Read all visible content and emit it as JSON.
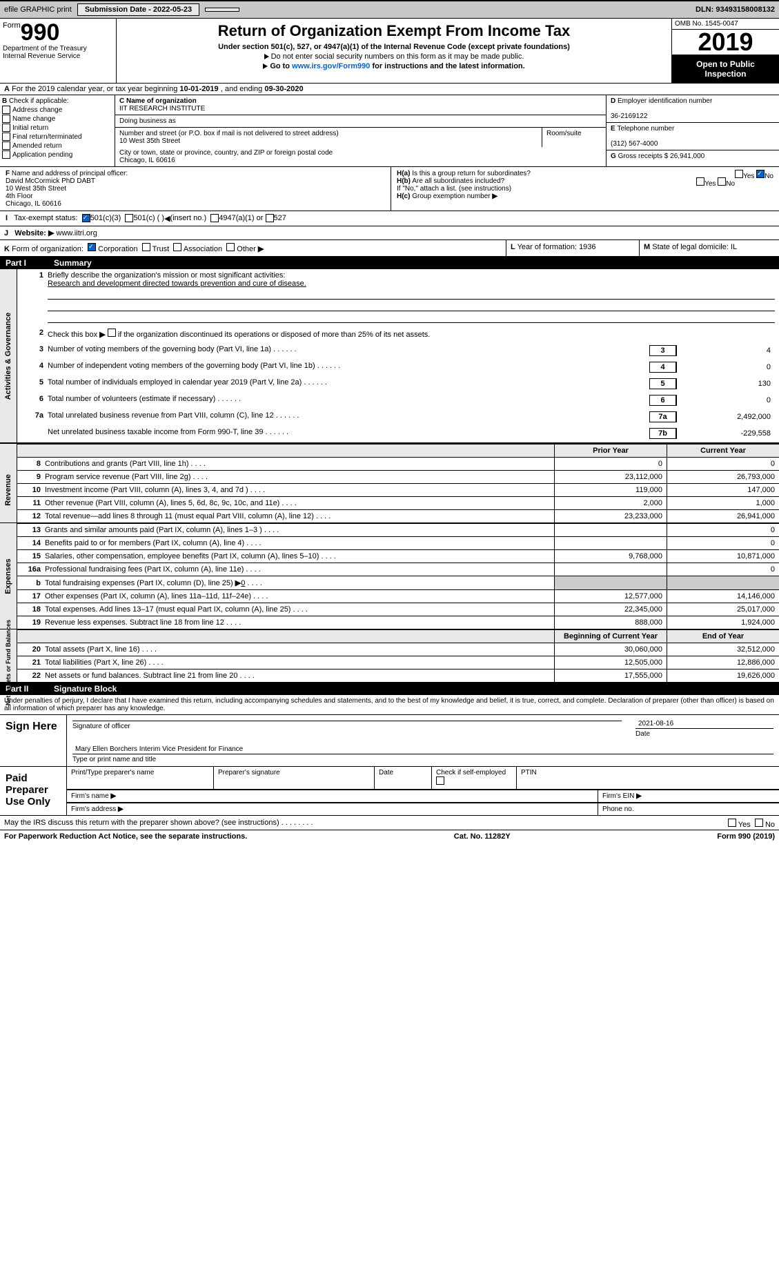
{
  "top": {
    "efile": "efile GRAPHIC print",
    "subm_lbl": "Submission Date - ",
    "subm_date": "2022-05-23",
    "dln": "DLN: 93493158008132"
  },
  "hdr": {
    "form": "Form",
    "num": "990",
    "dept": "Department of the Treasury\nInternal Revenue Service",
    "title": "Return of Organization Exempt From Income Tax",
    "sec": "Under section 501(c), 527, or 4947(a)(1) of the Internal Revenue Code (except private foundations)",
    "ssn": "Do not enter social security numbers on this form as it may be made public.",
    "goto": "Go to ",
    "url": "www.irs.gov/Form990",
    "instr": " for instructions and the latest information.",
    "omb": "OMB No. 1545-0047",
    "year": "2019",
    "otp": "Open to Public Inspection"
  },
  "period": {
    "a": "A",
    "txt": "For the 2019 calendar year, or tax year beginning ",
    "beg": "10-01-2019",
    "mid": " , and ending ",
    "end": "09-30-2020"
  },
  "b": {
    "lbl": "Check if applicable:",
    "items": [
      "Address change",
      "Name change",
      "Initial return",
      "Final return/terminated",
      "Amended return",
      "Application pending"
    ]
  },
  "c": {
    "name_lbl": "Name of organization",
    "name": "IIT RESEARCH INSTITUTE",
    "dba_lbl": "Doing business as",
    "addr_lbl": "Number and street (or P.O. box if mail is not delivered to street address)",
    "room_lbl": "Room/suite",
    "addr": "10 West 35th Street",
    "city_lbl": "City or town, state or province, country, and ZIP or foreign postal code",
    "city": "Chicago, IL  60616"
  },
  "d": {
    "ein_lbl": "Employer identification number",
    "ein": "36-2169122",
    "tel_lbl": "Telephone number",
    "tel": "(312) 567-4000",
    "gross_lbl": "Gross receipts $ ",
    "gross": "26,941,000"
  },
  "f": {
    "lbl": "Name and address of principal officer:",
    "lines": [
      "David McCormick PhD DABT",
      "10 West 35th Street",
      "4th Floor",
      "Chicago, IL  60616"
    ]
  },
  "h": {
    "a": "Is this a group return for subordinates?",
    "b": "Are all subordinates included?",
    "note": "If \"No,\" attach a list. (see instructions)",
    "c": "Group exemption number",
    "yes": "Yes",
    "no": "No"
  },
  "i": {
    "lbl": "Tax-exempt status:",
    "o1": "501(c)(3)",
    "o2": "501(c) (  )",
    "ins": "(insert no.)",
    "o3": "4947(a)(1) or",
    "o4": "527"
  },
  "j": {
    "lbl": "Website:",
    "url": "www.iitri.org"
  },
  "k": {
    "lbl": "Form of organization:",
    "opts": [
      "Corporation",
      "Trust",
      "Association",
      "Other"
    ]
  },
  "l": {
    "lbl": "Year of formation: ",
    "val": "1936"
  },
  "m": {
    "lbl": "State of legal domicile: ",
    "val": "IL"
  },
  "p1": {
    "title": "Summary",
    "q1": "Briefly describe the organization's mission or most significant activities:",
    "mission": "Research and development directed towards prevention and cure of disease.",
    "q2": "Check this box",
    "q2b": "if the organization discontinued its operations or disposed of more than 25% of its net assets.",
    "lines": [
      {
        "n": "3",
        "t": "Number of voting members of the governing body (Part VI, line 1a)",
        "b": "3",
        "v": "4"
      },
      {
        "n": "4",
        "t": "Number of independent voting members of the governing body (Part VI, line 1b)",
        "b": "4",
        "v": "0"
      },
      {
        "n": "5",
        "t": "Total number of individuals employed in calendar year 2019 (Part V, line 2a)",
        "b": "5",
        "v": "130"
      },
      {
        "n": "6",
        "t": "Total number of volunteers (estimate if necessary)",
        "b": "6",
        "v": "0"
      },
      {
        "n": "7a",
        "t": "Total unrelated business revenue from Part VIII, column (C), line 12",
        "b": "7a",
        "v": "2,492,000"
      },
      {
        "n": "",
        "t": "Net unrelated business taxable income from Form 990-T, line 39",
        "b": "7b",
        "v": "-229,558"
      }
    ],
    "hdr": {
      "prior": "Prior Year",
      "curr": "Current Year"
    },
    "rev": {
      "tab": "Revenue",
      "rows": [
        {
          "n": "8",
          "t": "Contributions and grants (Part VIII, line 1h)",
          "p": "0",
          "c": "0"
        },
        {
          "n": "9",
          "t": "Program service revenue (Part VIII, line 2g)",
          "p": "23,112,000",
          "c": "26,793,000"
        },
        {
          "n": "10",
          "t": "Investment income (Part VIII, column (A), lines 3, 4, and 7d )",
          "p": "119,000",
          "c": "147,000"
        },
        {
          "n": "11",
          "t": "Other revenue (Part VIII, column (A), lines 5, 6d, 8c, 9c, 10c, and 11e)",
          "p": "2,000",
          "c": "1,000"
        },
        {
          "n": "12",
          "t": "Total revenue—add lines 8 through 11 (must equal Part VIII, column (A), line 12)",
          "p": "23,233,000",
          "c": "26,941,000"
        }
      ]
    },
    "exp": {
      "tab": "Expenses",
      "rows": [
        {
          "n": "13",
          "t": "Grants and similar amounts paid (Part IX, column (A), lines 1–3 )",
          "p": "",
          "c": "0"
        },
        {
          "n": "14",
          "t": "Benefits paid to or for members (Part IX, column (A), line 4)",
          "p": "",
          "c": "0"
        },
        {
          "n": "15",
          "t": "Salaries, other compensation, employee benefits (Part IX, column (A), lines 5–10)",
          "p": "9,768,000",
          "c": "10,871,000"
        },
        {
          "n": "16a",
          "t": "Professional fundraising fees (Part IX, column (A), line 11e)",
          "p": "",
          "c": "0"
        },
        {
          "n": "b",
          "t": "Total fundraising expenses (Part IX, column (D), line 25)",
          "p": "GRAY",
          "c": "GRAY",
          "extra": "0"
        },
        {
          "n": "17",
          "t": "Other expenses (Part IX, column (A), lines 11a–11d, 11f–24e)",
          "p": "12,577,000",
          "c": "14,146,000"
        },
        {
          "n": "18",
          "t": "Total expenses. Add lines 13–17 (must equal Part IX, column (A), line 25)",
          "p": "22,345,000",
          "c": "25,017,000"
        },
        {
          "n": "19",
          "t": "Revenue less expenses. Subtract line 18 from line 12",
          "p": "888,000",
          "c": "1,924,000"
        }
      ]
    },
    "net": {
      "tab": "Net Assets or Fund Balances",
      "hdr": {
        "b": "Beginning of Current Year",
        "e": "End of Year"
      },
      "rows": [
        {
          "n": "20",
          "t": "Total assets (Part X, line 16)",
          "p": "30,060,000",
          "c": "32,512,000"
        },
        {
          "n": "21",
          "t": "Total liabilities (Part X, line 26)",
          "p": "12,505,000",
          "c": "12,886,000"
        },
        {
          "n": "22",
          "t": "Net assets or fund balances. Subtract line 21 from line 20",
          "p": "17,555,000",
          "c": "19,626,000"
        }
      ]
    }
  },
  "p2": {
    "title": "Signature Block",
    "decl": "Under penalties of perjury, I declare that I have examined this return, including accompanying schedules and statements, and to the best of my knowledge and belief, it is true, correct, and complete. Declaration of preparer (other than officer) is based on all information of which preparer has any knowledge."
  },
  "sign": {
    "lbl": "Sign Here",
    "sig": "Signature of officer",
    "date_lbl": "Date",
    "date": "2021-08-16",
    "name": "Mary Ellen Borchers  Interim Vice President for Finance",
    "type": "Type or print name and title"
  },
  "prep": {
    "lbl": "Paid Preparer Use Only",
    "h": [
      "Print/Type preparer's name",
      "Preparer's signature",
      "Date",
      "Check        if self-employed",
      "PTIN"
    ],
    "firm": "Firm's name",
    "ein": "Firm's EIN",
    "addr": "Firm's address",
    "phone": "Phone no."
  },
  "may": {
    "txt": "May the IRS discuss this return with the preparer shown above? (see instructions)",
    "yes": "Yes",
    "no": "No"
  },
  "foot": {
    "pra": "For Paperwork Reduction Act Notice, see the separate instructions.",
    "cat": "Cat. No. 11282Y",
    "form": "Form 990 (2019)"
  }
}
